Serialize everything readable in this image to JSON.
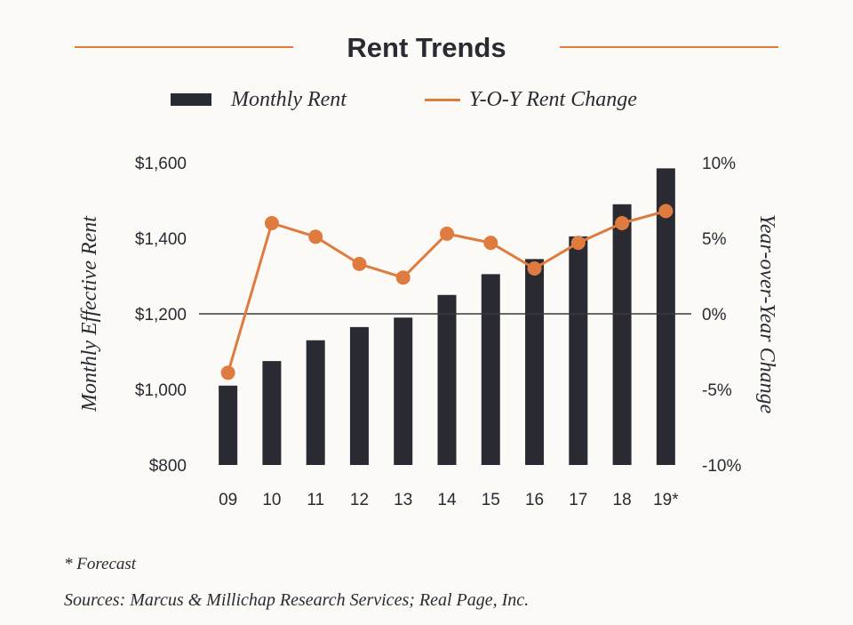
{
  "colors": {
    "bar": "#2a2a33",
    "line": "#e07b3f",
    "zero_line": "#3a3a3a",
    "text": "#2a2a33"
  },
  "legend": {
    "bar_label": "Monthly Rent",
    "line_label": "Y-O-Y Rent Change"
  },
  "footnote": "* Forecast",
  "sources": "Sources: Marcus & Millichap Research Services; Real Page, Inc.",
  "chart_data": {
    "type": "bar",
    "title": "Rent Trends",
    "categories": [
      "09",
      "10",
      "11",
      "12",
      "13",
      "14",
      "15",
      "16",
      "17",
      "18",
      "19*"
    ],
    "series": [
      {
        "name": "Monthly Rent",
        "type": "bar",
        "axis": "left",
        "values": [
          1010,
          1075,
          1130,
          1165,
          1190,
          1250,
          1305,
          1345,
          1405,
          1490,
          1585
        ]
      },
      {
        "name": "Y-O-Y Rent Change",
        "type": "line",
        "axis": "right",
        "values": [
          -3.9,
          6.0,
          5.1,
          3.3,
          2.4,
          5.3,
          4.7,
          3.0,
          4.7,
          6.0,
          6.8
        ]
      }
    ],
    "ylabel": "Monthly Effective Rent",
    "ylim": [
      800,
      1600
    ],
    "yticks": [
      "$800",
      "$1,000",
      "$1,200",
      "$1,400",
      "$1,600"
    ],
    "y2label": "Year-over-Year Change",
    "y2lim": [
      -10,
      10
    ],
    "y2ticks": [
      "-10%",
      "-5%",
      "0%",
      "5%",
      "10%"
    ],
    "grid": false,
    "reference_line": {
      "axis": "right",
      "value": 0
    },
    "legend_position": "top"
  }
}
